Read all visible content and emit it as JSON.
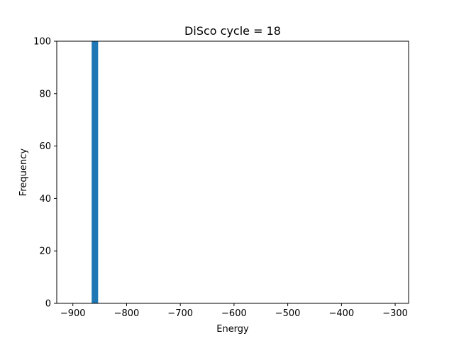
{
  "chart_data": {
    "type": "bar",
    "title": "DiSco cycle = 18",
    "xlabel": "Energy",
    "ylabel": "Frequency",
    "xlim": [
      -930,
      -275
    ],
    "ylim": [
      0,
      100
    ],
    "x_ticks": [
      -900,
      -800,
      -700,
      -600,
      -500,
      -400,
      -300
    ],
    "y_ticks": [
      0,
      20,
      40,
      60,
      80,
      100
    ],
    "bins": [
      {
        "x0": -865,
        "x1": -853,
        "value": 100
      }
    ],
    "grid": false,
    "legend": "none",
    "colors": {
      "bar": "#1f77b4",
      "axes": "#000000",
      "background": "#ffffff"
    }
  }
}
